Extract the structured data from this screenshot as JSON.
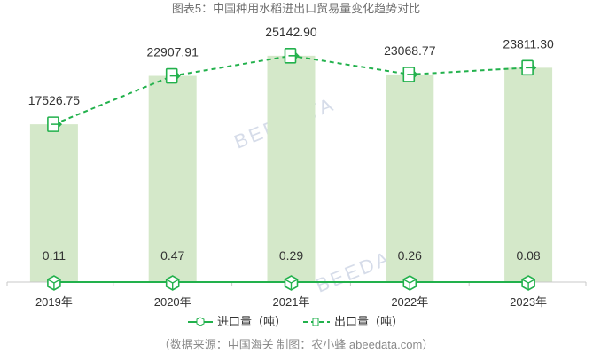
{
  "chart_data": {
    "type": "bar",
    "title": "图表5：中国种用水稻进出口贸易量变化趋势对比",
    "categories": [
      "2019年",
      "2020年",
      "2021年",
      "2022年",
      "2023年"
    ],
    "series": [
      {
        "name": "进口量（吨）",
        "type": "line",
        "values": [
          0.11,
          0.47,
          0.29,
          0.26,
          0.08
        ],
        "color": "#22b14c"
      },
      {
        "name": "出口量（吨）",
        "type": "bar+dashed-line",
        "values": [
          17526.75,
          22907.91,
          25142.9,
          23068.77,
          23811.3
        ],
        "color": "#22b14c",
        "bar_color": "#d4e8c9"
      }
    ],
    "value_labels": {
      "import": [
        "0.11",
        "0.47",
        "0.29",
        "0.26",
        "0.08"
      ],
      "export": [
        "17526.75",
        "22907.91",
        "25142.90",
        "23068.77",
        "23811.30"
      ]
    },
    "ylim": [
      0,
      27000
    ],
    "legend_position": "bottom",
    "source": "（数据来源：中国海关    制图：农小蜂 abeedata.com）",
    "watermark": "BEEDATA"
  }
}
